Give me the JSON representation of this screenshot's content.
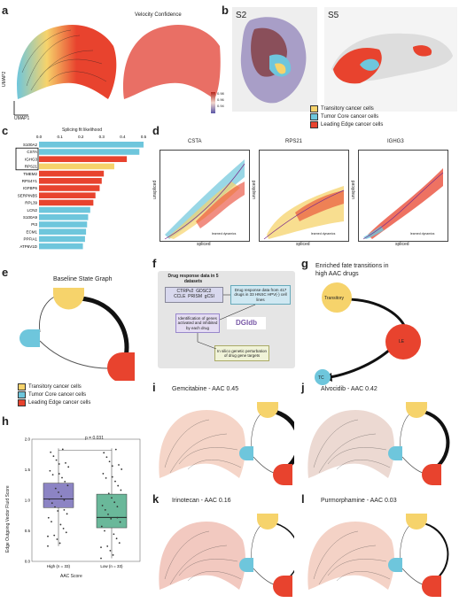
{
  "panels": {
    "a": "a",
    "b": "b",
    "c": "c",
    "d": "d",
    "e": "e",
    "f": "f",
    "g": "g",
    "h": "h",
    "i": "i",
    "j": "j",
    "k": "k",
    "l": "l"
  },
  "a": {
    "title": "Velocity Confidence",
    "umap1": "UMAP1",
    "umap2": "UMAP2",
    "colorbar_ticks": [
      "0.98",
      "0.96",
      "0.94"
    ]
  },
  "b": {
    "s2": "S2",
    "s5": "S5"
  },
  "legend": {
    "transitory": "Transitory cancer cells",
    "core": "Tumor Core cancer cells",
    "leading": "Leading Edge cancer cells",
    "colors": {
      "transitory": "#f6d36b",
      "core": "#6ec6dc",
      "leading": "#e8432e"
    }
  },
  "c": {
    "chart_data": {
      "type": "bar",
      "title": "Splicing fit likelihood",
      "ticks": [
        "0.0",
        "0.1",
        "0.2",
        "0.3",
        "0.4",
        "0.5"
      ],
      "xlim": [
        0,
        0.5
      ],
      "categories": [
        "S100A2",
        "CSTA",
        "IGHG3",
        "RPS21",
        "TMEM2",
        "RPS4Y1",
        "IGFBP6",
        "SERPINB5",
        "RPL39",
        "LCN2",
        "S100A9",
        "PI3",
        "ECM1",
        "PPFIA1",
        "ATP6V1D"
      ],
      "values": [
        0.5,
        0.48,
        0.42,
        0.36,
        0.31,
        0.3,
        0.29,
        0.27,
        0.26,
        0.245,
        0.235,
        0.23,
        0.225,
        0.22,
        0.21
      ],
      "colors": [
        "#6ec6dc",
        "#6ec6dc",
        "#e8432e",
        "#f6d36b",
        "#e8432e",
        "#e8432e",
        "#e8432e",
        "#e8432e",
        "#e8432e",
        "#6ec6dc",
        "#6ec6dc",
        "#6ec6dc",
        "#6ec6dc",
        "#6ec6dc",
        "#6ec6dc"
      ]
    }
  },
  "d": {
    "genes": [
      "CSTA",
      "RPS21",
      "IGHG3"
    ],
    "xlabel": "spliced",
    "ylabel": "unspliced",
    "fit": "learned dynamics"
  },
  "e": {
    "title": "Baseline State Graph"
  },
  "f": {
    "title": "Drug response data in 5 datasets",
    "datasets": "CTRPv2  GDSC2\nCCLE  PRISM  gCSI",
    "response": "Drug response data from 417 drugs in 33 HNSC HPV(-) cell lines",
    "ident": "Identification of genes activated and inhibited by each drug",
    "dgidb": "DGIdb",
    "insilico": "In silico genetic perturbation of drug gene targets"
  },
  "g": {
    "title": "Enriched fate transitions in\nhigh AAC drugs",
    "transitory": "Transitory",
    "le": "LE",
    "tc": "TC"
  },
  "h": {
    "ylabel": "Edge Outgoing Vector Fluid Score",
    "xlabel": "AAC Score",
    "pval": "p = 0.031",
    "groups": [
      "High (n = 33)",
      "Low (n = 33)"
    ],
    "yticks": [
      "2.0",
      "1.5",
      "1.0",
      "0.5",
      "0.0"
    ],
    "chart_data": {
      "type": "box",
      "categories": [
        "High (n = 33)",
        "Low (n = 33)"
      ],
      "ylim": [
        0,
        2.0
      ],
      "boxes": [
        {
          "name": "High (n = 33)",
          "q1": 0.88,
          "median": 1.02,
          "q3": 1.28,
          "min": 0.25,
          "max": 1.85,
          "color": "#8c84c4"
        },
        {
          "name": "Low (n = 33)",
          "q1": 0.55,
          "median": 0.72,
          "q3": 1.1,
          "min": 0.05,
          "max": 1.85,
          "color": "#6ab89a"
        }
      ]
    }
  },
  "drugs": [
    {
      "title": "Gemcitabine - AAC 0.45"
    },
    {
      "title": "Alvocidib - AAC 0.42"
    },
    {
      "title": "Irinotecan - AAC 0.16"
    },
    {
      "title": "Purmorphamine - AAC 0.03"
    }
  ]
}
